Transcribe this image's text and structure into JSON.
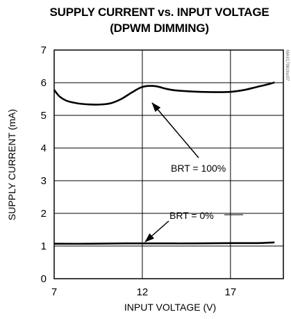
{
  "chart_data": {
    "type": "line",
    "title": "SUPPLY CURRENT vs. INPUT VOLTAGE",
    "subtitle": "(DPWM DIMMING)",
    "xlabel": "INPUT VOLTAGE (V)",
    "ylabel": "SUPPLY CURRENT (mA)",
    "xlim": [
      7,
      20
    ],
    "ylim": [
      0,
      7
    ],
    "x_ticks": [
      7,
      12,
      17
    ],
    "y_ticks": [
      0,
      1,
      2,
      3,
      4,
      5,
      6,
      7
    ],
    "grid": true,
    "watermark": "MAX17061toc07",
    "annotations": [
      "BRT = 100%",
      "BRT = 0%"
    ],
    "series": [
      {
        "name": "BRT = 100%",
        "x": [
          7.0,
          7.3,
          7.7,
          8.2,
          8.8,
          9.5,
          10.2,
          10.8,
          11.4,
          11.9,
          12.3,
          12.8,
          13.3,
          13.8,
          14.5,
          15.3,
          16.2,
          17.0,
          17.8,
          18.5,
          19.2,
          19.5
        ],
        "y": [
          5.78,
          5.58,
          5.45,
          5.38,
          5.34,
          5.33,
          5.37,
          5.5,
          5.7,
          5.85,
          5.9,
          5.89,
          5.82,
          5.77,
          5.74,
          5.72,
          5.71,
          5.72,
          5.78,
          5.87,
          5.96,
          6.01
        ]
      },
      {
        "name": "BRT = 0%",
        "x": [
          7.0,
          9.0,
          11.0,
          13.0,
          15.0,
          17.0,
          18.5,
          19.5
        ],
        "y": [
          1.07,
          1.07,
          1.08,
          1.08,
          1.08,
          1.09,
          1.09,
          1.11
        ]
      }
    ]
  }
}
